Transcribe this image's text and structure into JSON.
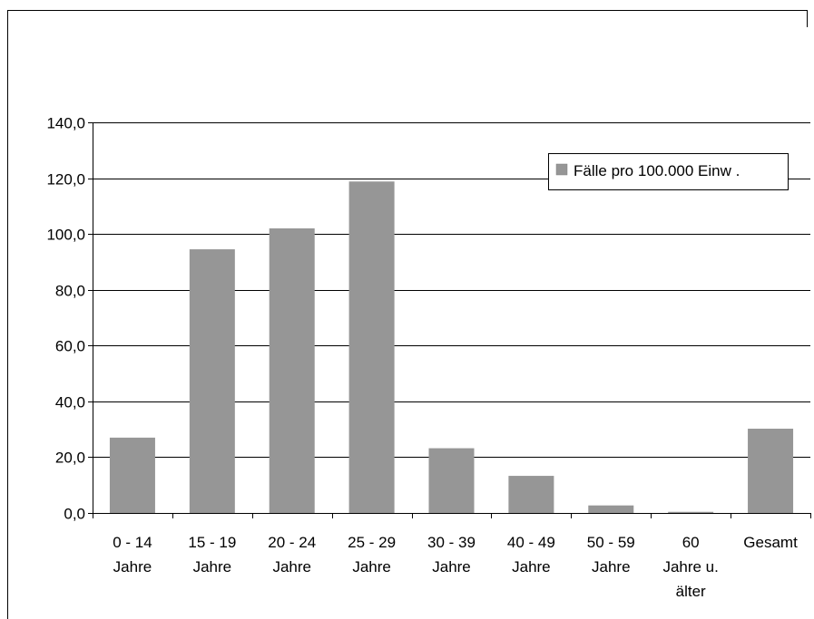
{
  "chart_data": {
    "type": "bar",
    "categories": [
      [
        "0 - 14",
        "Jahre"
      ],
      [
        "15 - 19",
        "Jahre"
      ],
      [
        "20 - 24",
        "Jahre"
      ],
      [
        "25 - 29",
        "Jahre"
      ],
      [
        "30 - 39",
        "Jahre"
      ],
      [
        "40 - 49",
        "Jahre"
      ],
      [
        "50 - 59",
        "Jahre"
      ],
      [
        "60",
        "Jahre u.",
        "älter"
      ],
      [
        "Gesamt"
      ]
    ],
    "series": [
      {
        "name": "Fälle pro 100.000 Einw .",
        "values": [
          27.0,
          94.5,
          102.0,
          118.8,
          23.2,
          13.3,
          2.7,
          0.4,
          30.2
        ],
        "color": "#969696"
      }
    ],
    "ylim": [
      0,
      140
    ],
    "yticks": [
      "0,0",
      "20,0",
      "40,0",
      "60,0",
      "80,0",
      "100,0",
      "120,0",
      "140,0"
    ],
    "grid": true,
    "legend_position": "top-right",
    "xlabel": "",
    "ylabel": "",
    "title": ""
  }
}
